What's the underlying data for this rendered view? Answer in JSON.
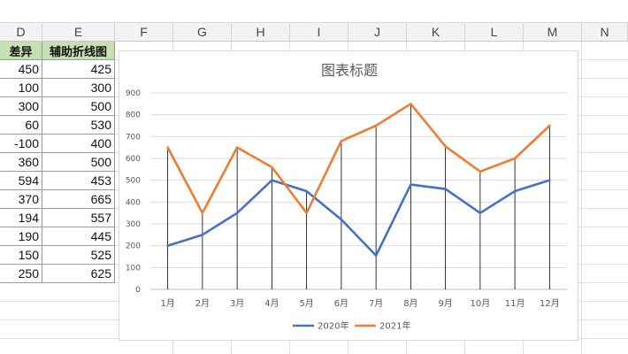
{
  "columns": [
    "D",
    "E",
    "F",
    "G",
    "H",
    "I",
    "J",
    "K",
    "L",
    "M",
    "N"
  ],
  "table": {
    "headers": [
      "差异",
      "辅助折线图"
    ],
    "rows": [
      [
        "450",
        "425"
      ],
      [
        "100",
        "300"
      ],
      [
        "300",
        "500"
      ],
      [
        "60",
        "530"
      ],
      [
        "-100",
        "400"
      ],
      [
        "360",
        "500"
      ],
      [
        "594",
        "453"
      ],
      [
        "370",
        "665"
      ],
      [
        "194",
        "557"
      ],
      [
        "190",
        "445"
      ],
      [
        "150",
        "525"
      ],
      [
        "250",
        "625"
      ]
    ]
  },
  "chart_data": {
    "type": "line",
    "title": "图表标题",
    "categories": [
      "1月",
      "2月",
      "3月",
      "4月",
      "5月",
      "6月",
      "7月",
      "8月",
      "9月",
      "10月",
      "11月",
      "12月"
    ],
    "series": [
      {
        "name": "2020年",
        "color": "#4472c4",
        "values": [
          200,
          250,
          350,
          500,
          450,
          320,
          155,
          480,
          460,
          350,
          450,
          500
        ]
      },
      {
        "name": "2021年",
        "color": "#ed7d31",
        "values": [
          650,
          350,
          650,
          560,
          350,
          680,
          750,
          850,
          655,
          540,
          600,
          750
        ]
      }
    ],
    "drop_lines": true,
    "ylim": [
      0,
      900
    ],
    "yticks": [
      0,
      100,
      200,
      300,
      400,
      500,
      600,
      700,
      800,
      900
    ],
    "grid": true,
    "legend": "bottom"
  }
}
